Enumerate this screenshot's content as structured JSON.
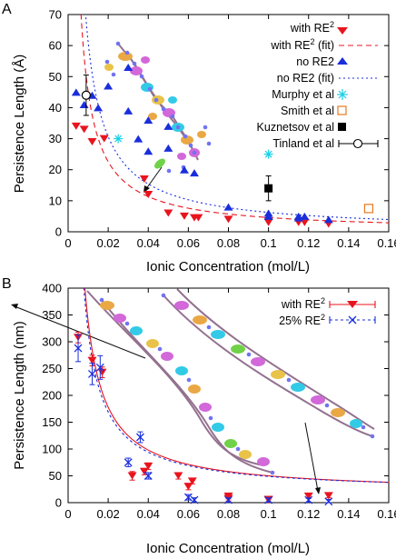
{
  "chart_data": [
    {
      "type": "scatter",
      "panel_label": "A",
      "xlabel": "Ionic Concentration (mol/L)",
      "ylabel": "Persistence Length (Å)",
      "xlim": [
        0,
        0.16
      ],
      "ylim": [
        0,
        70
      ],
      "xticks": [
        "0",
        "0.02",
        "0.04",
        "0.06",
        "0.08",
        "0.1",
        "0.12",
        "0.14",
        "0.16"
      ],
      "yticks": [
        "0",
        "10",
        "20",
        "30",
        "40",
        "50",
        "60",
        "70"
      ],
      "legend_position": "top-right",
      "colors": {
        "red": "#e8141e",
        "blue": "#1a2edc",
        "cyan": "#18d0e6",
        "orange": "#e8781e",
        "black": "#000000"
      },
      "series": [
        {
          "name": "with RE²",
          "marker": "triangle-down",
          "color": "red",
          "x": [
            0.004,
            0.008,
            0.012,
            0.018,
            0.038,
            0.04,
            0.05,
            0.058,
            0.063,
            0.065,
            0.08,
            0.1,
            0.1,
            0.115,
            0.118,
            0.13
          ],
          "y": [
            34,
            33,
            29,
            30,
            17,
            12,
            6,
            5,
            4.5,
            4.5,
            4,
            3.5,
            3,
            3,
            3,
            2.5
          ]
        },
        {
          "name": "with RE² (fit)",
          "style": "dashed",
          "color": "red",
          "A": 0.45,
          "B": 0.09
        },
        {
          "name": "no RE2",
          "marker": "triangle-up",
          "color": "blue",
          "x": [
            0.004,
            0.008,
            0.012,
            0.015,
            0.02,
            0.03,
            0.03,
            0.035,
            0.04,
            0.04,
            0.05,
            0.05,
            0.058,
            0.063,
            0.08,
            0.1,
            0.1,
            0.115,
            0.115,
            0.118,
            0.13
          ],
          "y": [
            45,
            41,
            44,
            40,
            47,
            53,
            39,
            30,
            26,
            36,
            34,
            27,
            20,
            19,
            8,
            6,
            5,
            4.5,
            5,
            5,
            4
          ]
        },
        {
          "name": "no RE2 (fit)",
          "style": "dotted",
          "color": "blue",
          "A": 0.61,
          "B": 0.14
        },
        {
          "name": "Murphy et al",
          "marker": "asterisk",
          "color": "cyan",
          "x": [
            0.025,
            0.1
          ],
          "y": [
            30,
            25
          ]
        },
        {
          "name": "Smith et al",
          "marker": "open-square",
          "color": "orange",
          "x": [
            0.15
          ],
          "y": [
            7.5
          ]
        },
        {
          "name": "Kuznetsov et al",
          "marker": "filled-square",
          "color": "black",
          "x": [
            0.1
          ],
          "y": [
            14
          ],
          "yerr": [
            4
          ]
        },
        {
          "name": "Tinland et al",
          "marker": "open-circle-errorbar",
          "color": "black",
          "x": [
            0.009
          ],
          "y": [
            44
          ],
          "yerr": [
            6.5
          ]
        }
      ]
    },
    {
      "type": "scatter",
      "panel_label": "B",
      "xlabel": "Ionic Concentration (mol/L)",
      "ylabel": "Persistence Length (nm)",
      "xlim": [
        0,
        0.16
      ],
      "ylim": [
        0,
        400
      ],
      "xticks": [
        "0",
        "0.02",
        "0.04",
        "0.06",
        "0.08",
        "0.1",
        "0.12",
        "0.14",
        "0.16"
      ],
      "yticks": [
        "0",
        "50",
        "100",
        "150",
        "200",
        "250",
        "300",
        "350",
        "400"
      ],
      "legend_position": "top-right",
      "colors": {
        "red": "#e8141e",
        "blue": "#1a2edc"
      },
      "series": [
        {
          "name": "with RE²",
          "marker": "triangle-down-errorbar",
          "color": "red",
          "x": [
            0.005,
            0.012,
            0.017,
            0.032,
            0.038,
            0.04,
            0.055,
            0.06,
            0.062,
            0.08,
            0.08,
            0.1,
            0.1,
            0.12,
            0.13
          ],
          "y": [
            308,
            265,
            243,
            50,
            58,
            68,
            50,
            30,
            40,
            12,
            8,
            5,
            6,
            12,
            13
          ],
          "yerr": [
            10,
            10,
            10,
            8,
            6,
            6,
            6,
            6,
            5,
            5,
            5,
            4,
            4,
            4,
            4
          ]
        },
        {
          "name": "25% RE²",
          "marker": "x-errorbar",
          "color": "blue",
          "x": [
            0.005,
            0.012,
            0.016,
            0.03,
            0.036,
            0.04,
            0.06,
            0.063,
            0.08,
            0.1,
            0.12,
            0.13
          ],
          "y": [
            288,
            240,
            252,
            75,
            122,
            50,
            10,
            5,
            5,
            5,
            5,
            2
          ],
          "yerr": [
            25,
            20,
            22,
            8,
            10,
            6,
            5,
            4,
            4,
            4,
            4,
            4
          ]
        },
        {
          "name": "with RE² (fit)",
          "style": "solid",
          "color": "red",
          "A": 3.2,
          "B": 18
        },
        {
          "name": "25% RE² (fit)",
          "style": "dashed",
          "color": "blue",
          "A": 3.0,
          "B": 19
        }
      ]
    }
  ]
}
